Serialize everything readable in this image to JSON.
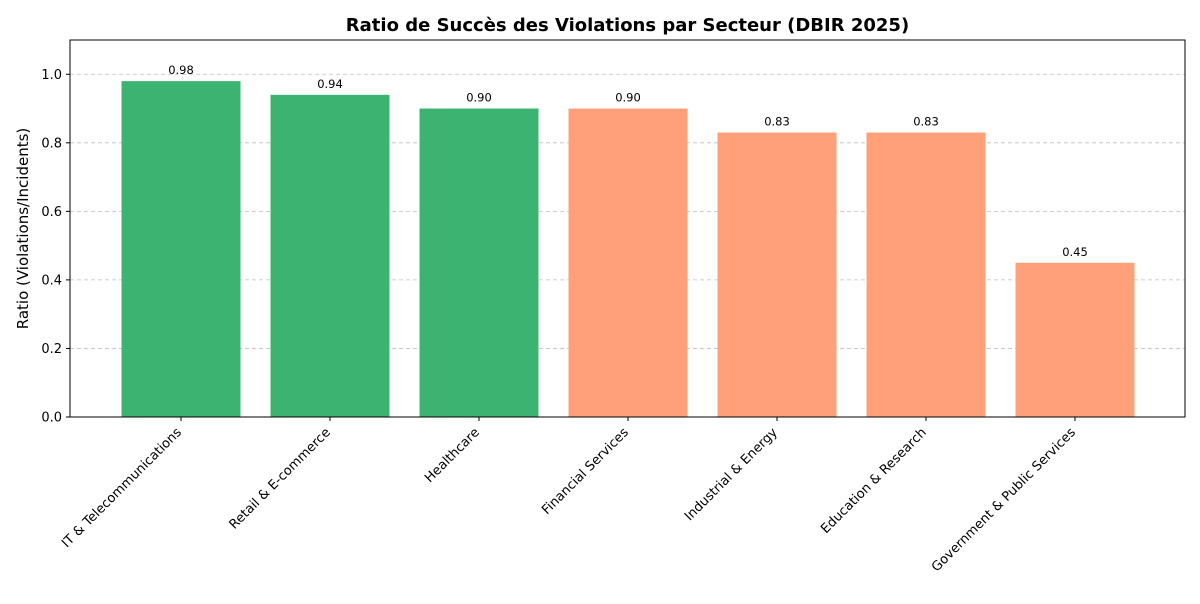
{
  "chart_data": {
    "type": "bar",
    "title": "Ratio de Succès des Violations par Secteur (DBIR 2025)",
    "xlabel": "",
    "ylabel": "Ratio (Violations/Incidents)",
    "ylim": [
      0,
      1.1
    ],
    "yticks": [
      "0.0",
      "0.2",
      "0.4",
      "0.6",
      "0.8",
      "1.0"
    ],
    "ytick_values": [
      0,
      0.2,
      0.4,
      0.6,
      0.8,
      1.0
    ],
    "grid": "y-dashed",
    "categories": [
      "IT & Telecommunications",
      "Retail & E-commerce",
      "Healthcare",
      "Financial Services",
      "Industrial & Energy",
      "Education & Research",
      "Government & Public Services"
    ],
    "values": [
      0.98,
      0.94,
      0.9,
      0.9,
      0.83,
      0.83,
      0.45
    ],
    "value_labels": [
      "0.98",
      "0.94",
      "0.90",
      "0.90",
      "0.83",
      "0.83",
      "0.45"
    ],
    "bar_colors": [
      "#3cb371",
      "#3cb371",
      "#3cb371",
      "#ffa07a",
      "#ffa07a",
      "#ffa07a",
      "#ffa07a"
    ]
  }
}
